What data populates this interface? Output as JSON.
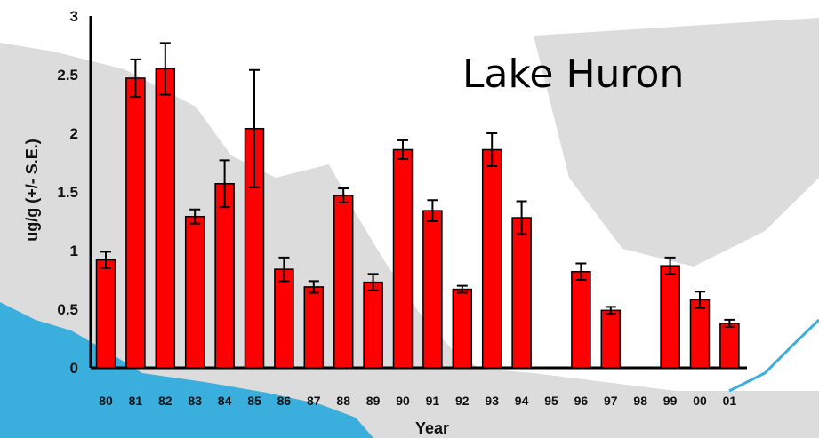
{
  "chart_data": {
    "type": "bar",
    "title": "Lake Huron",
    "xlabel": "Year",
    "ylabel": "ug/g (+/- S.E.)",
    "ylim": [
      0,
      3
    ],
    "yticks": [
      "0",
      "0.5",
      "1",
      "1.5",
      "2",
      "2.5",
      "3"
    ],
    "categories": [
      "80",
      "81",
      "82",
      "83",
      "84",
      "85",
      "86",
      "87",
      "88",
      "89",
      "90",
      "91",
      "92",
      "93",
      "94",
      "95",
      "96",
      "97",
      "98",
      "99",
      "00",
      "01"
    ],
    "values": [
      0.92,
      2.47,
      2.55,
      1.29,
      1.57,
      2.04,
      0.84,
      0.69,
      1.47,
      0.73,
      1.86,
      1.34,
      0.67,
      1.86,
      1.28,
      null,
      0.82,
      0.49,
      null,
      0.87,
      0.58,
      0.38
    ],
    "errors": [
      0.07,
      0.16,
      0.22,
      0.06,
      0.2,
      0.5,
      0.1,
      0.05,
      0.06,
      0.07,
      0.08,
      0.09,
      0.03,
      0.14,
      0.14,
      null,
      0.07,
      0.03,
      null,
      0.07,
      0.07,
      0.03
    ],
    "grid": false,
    "colors": {
      "bar": "#ff0000",
      "bar_outline": "#000000",
      "land": "#dcdcdc",
      "water": "#3aaedc"
    }
  }
}
